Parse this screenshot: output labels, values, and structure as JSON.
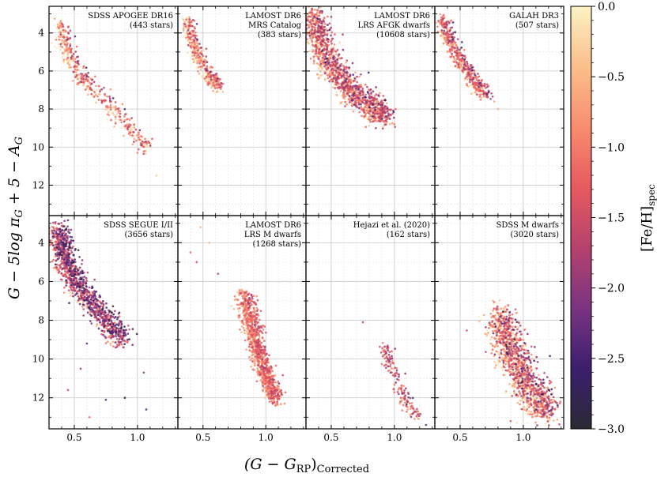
{
  "figure": {
    "xlabel": "(G − G",
    "xlabel_sub": "RP",
    "xlabel_tail": ")",
    "xlabel_sub2": "Corrected",
    "ylabel": "G − 5log π",
    "ylabel_sub1": "G",
    "ylabel_mid": " + 5 − A",
    "ylabel_sub2": "G",
    "colorbar_label": "[Fe/H]",
    "colorbar_label_sub": "spec"
  },
  "chart_data": {
    "type": "scatter",
    "layout": "2 rows x 4 columns, shared axes",
    "x_axis": {
      "range": [
        0.3,
        1.32
      ],
      "ticks": [
        0.5,
        1.0
      ],
      "tick_labels": [
        "0.5",
        "1.0"
      ]
    },
    "y_axis": {
      "range": [
        2.6,
        13.6
      ],
      "inverted": true,
      "ticks": [
        4,
        6,
        8,
        10,
        12
      ],
      "tick_labels": [
        "4",
        "6",
        "8",
        "10",
        "12"
      ]
    },
    "grid": true,
    "colorbar": {
      "quantity": "[Fe/H]spec",
      "range": [
        -3.0,
        0.0
      ],
      "ticks": [
        0.0,
        -0.5,
        -1.0,
        -1.5,
        -2.0,
        -2.5,
        -3.0
      ],
      "tick_labels": [
        "0.0",
        "−0.5",
        "−1.0",
        "−1.5",
        "−2.0",
        "−2.5",
        "−3.0"
      ],
      "colormap": "magma",
      "colormap_stops": [
        "#2a2a33",
        "#3b1f6e",
        "#7a3481",
        "#b5426d",
        "#e75a5f",
        "#f88d6e",
        "#fbbf8c",
        "#fcf2c4"
      ]
    },
    "panels": [
      {
        "line1": "SDSS APOGEE DR16",
        "line2": "(443 stars)",
        "line3": "",
        "ridge": [
          [
            0.38,
            3.6
          ],
          [
            0.42,
            4.4
          ],
          [
            0.46,
            5.3
          ],
          [
            0.55,
            6.3
          ],
          [
            0.7,
            7.3
          ],
          [
            0.85,
            8.3
          ],
          [
            0.98,
            9.3
          ],
          [
            1.08,
            10.1
          ]
        ],
        "spread": 0.05,
        "point_count": 443,
        "feh_mean": -0.9,
        "feh_sd": 0.55,
        "outliers": [
          [
            1.15,
            11.5
          ],
          [
            1.0,
            10.3
          ]
        ]
      },
      {
        "line1": "LAMOST DR6",
        "line2": "MRS Catalog",
        "line3": "(383 stars)",
        "ridge": [
          [
            0.37,
            3.3
          ],
          [
            0.4,
            4.2
          ],
          [
            0.45,
            5.0
          ],
          [
            0.5,
            5.8
          ],
          [
            0.57,
            6.4
          ],
          [
            0.62,
            6.9
          ]
        ],
        "spread": 0.04,
        "point_count": 383,
        "feh_mean": -0.8,
        "feh_sd": 0.55,
        "outliers": []
      },
      {
        "line1": "LAMOST DR6",
        "line2": "LRS AFGK dwarfs",
        "line3": "(10608 stars)",
        "ridge": [
          [
            0.35,
            3.0
          ],
          [
            0.4,
            4.2
          ],
          [
            0.48,
            5.5
          ],
          [
            0.58,
            6.5
          ],
          [
            0.7,
            7.3
          ],
          [
            0.82,
            7.9
          ],
          [
            0.92,
            8.4
          ]
        ],
        "spread": 0.08,
        "point_count": 1400,
        "feh_mean": -1.1,
        "feh_sd": 0.6,
        "outliers": [
          [
            1.0,
            8.8
          ]
        ]
      },
      {
        "line1": "GALAH DR3",
        "line2": "(507 stars)",
        "line3": "",
        "ridge": [
          [
            0.35,
            3.3
          ],
          [
            0.4,
            4.2
          ],
          [
            0.46,
            5.1
          ],
          [
            0.54,
            5.9
          ],
          [
            0.62,
            6.6
          ],
          [
            0.7,
            7.3
          ]
        ],
        "spread": 0.04,
        "point_count": 507,
        "feh_mean": -1.0,
        "feh_sd": 0.6,
        "outliers": [
          [
            0.8,
            8.0
          ],
          [
            0.77,
            7.6
          ]
        ]
      },
      {
        "line1": "SDSS SEGUE I/II",
        "line2": "(3656 stars)",
        "line3": "",
        "ridge": [
          [
            0.37,
            3.3
          ],
          [
            0.4,
            4.2
          ],
          [
            0.45,
            5.2
          ],
          [
            0.53,
            6.2
          ],
          [
            0.65,
            7.2
          ],
          [
            0.77,
            8.1
          ],
          [
            0.88,
            9.1
          ]
        ],
        "spread": 0.07,
        "point_count": 1200,
        "feh_mean": -1.7,
        "feh_sd": 0.6,
        "outliers": [
          [
            0.45,
            11.6
          ],
          [
            0.62,
            13.0
          ],
          [
            0.75,
            12.1
          ],
          [
            0.9,
            12.0
          ],
          [
            1.07,
            12.6
          ],
          [
            1.05,
            10.7
          ],
          [
            0.55,
            10.5
          ],
          [
            0.6,
            9.2
          ]
        ]
      },
      {
        "line1": "LAMOST DR6",
        "line2": "LRS M dwarfs",
        "line3": "(1268 stars)",
        "ridge": [
          [
            0.82,
            6.6
          ],
          [
            0.86,
            7.6
          ],
          [
            0.9,
            8.6
          ],
          [
            0.94,
            9.6
          ],
          [
            0.98,
            10.5
          ],
          [
            1.04,
            11.4
          ],
          [
            1.08,
            12.1
          ]
        ],
        "spread": 0.055,
        "point_count": 1000,
        "feh_mean": -1.0,
        "feh_sd": 0.35,
        "outliers": [
          [
            0.4,
            4.5
          ],
          [
            0.45,
            5.0
          ],
          [
            0.48,
            3.2
          ],
          [
            0.55,
            4.0
          ],
          [
            0.62,
            5.6
          ],
          [
            1.15,
            12.3
          ]
        ]
      },
      {
        "line1": "Hejazi et al. (2020)",
        "line2": "(162 stars)",
        "line3": "",
        "ridge": [
          [
            0.92,
            9.4
          ],
          [
            0.96,
            10.2
          ],
          [
            1.0,
            11.0
          ],
          [
            1.06,
            11.8
          ],
          [
            1.12,
            12.5
          ],
          [
            1.2,
            13.0
          ]
        ],
        "spread": 0.04,
        "point_count": 162,
        "feh_mean": -1.3,
        "feh_sd": 0.45,
        "outliers": [
          [
            0.75,
            8.1
          ],
          [
            1.25,
            13.4
          ]
        ]
      },
      {
        "line1": "SDSS M dwarfs",
        "line2": "(3020 stars)",
        "line3": "",
        "ridge": [
          [
            0.8,
            7.7
          ],
          [
            0.85,
            8.6
          ],
          [
            0.9,
            9.5
          ],
          [
            0.96,
            10.4
          ],
          [
            1.02,
            11.2
          ],
          [
            1.1,
            12.0
          ],
          [
            1.18,
            12.7
          ]
        ],
        "spread": 0.1,
        "point_count": 1300,
        "feh_mean": -1.0,
        "feh_sd": 0.7,
        "outliers": [
          [
            0.9,
            13.2
          ],
          [
            0.95,
            13.3
          ]
        ]
      }
    ]
  }
}
